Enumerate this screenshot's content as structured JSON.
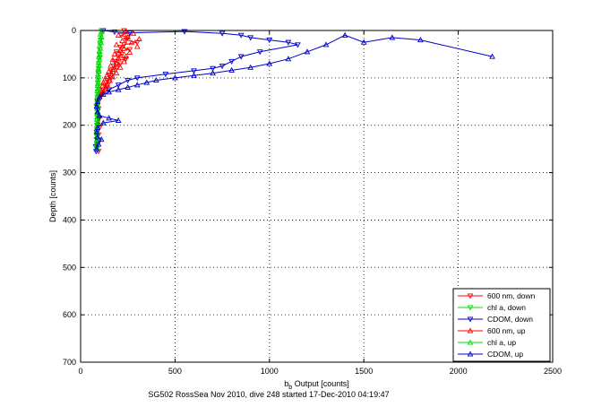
{
  "caption": "SG502 RossSea Nov 2010, dive 248 started 17-Dec-2010 04:19:47",
  "chart_data": {
    "type": "scatter",
    "xlabel": {
      "main": "b",
      "sub": "b",
      "rest": " Output [counts]"
    },
    "ylabel": "Depth [counts]",
    "xlim": [
      0,
      2500
    ],
    "ylim": [
      0,
      700
    ],
    "y_reversed": true,
    "xticks": [
      0,
      500,
      1000,
      1500,
      2000,
      2500
    ],
    "yticks": [
      0,
      100,
      200,
      300,
      400,
      500,
      600,
      700
    ],
    "grid": true,
    "grid_style": "dotted",
    "legend_position": "bottom-right",
    "series": [
      {
        "name": "600 nm, down",
        "color": "#ff0000",
        "marker": "triangle-down",
        "line": true,
        "points": [
          [
            230,
            0
          ],
          [
            260,
            5
          ],
          [
            215,
            10
          ],
          [
            250,
            15
          ],
          [
            240,
            20
          ],
          [
            300,
            25
          ],
          [
            230,
            30
          ],
          [
            210,
            35
          ],
          [
            260,
            40
          ],
          [
            190,
            45
          ],
          [
            220,
            50
          ],
          [
            200,
            55
          ],
          [
            240,
            60
          ],
          [
            180,
            65
          ],
          [
            210,
            70
          ],
          [
            175,
            75
          ],
          [
            190,
            80
          ],
          [
            160,
            85
          ],
          [
            170,
            90
          ],
          [
            150,
            95
          ],
          [
            160,
            100
          ],
          [
            140,
            105
          ],
          [
            150,
            110
          ],
          [
            130,
            115
          ],
          [
            140,
            120
          ],
          [
            120,
            125
          ],
          [
            115,
            130
          ],
          [
            105,
            135
          ],
          [
            100,
            140
          ],
          [
            95,
            150
          ],
          [
            95,
            165
          ],
          [
            100,
            185
          ],
          [
            100,
            205
          ],
          [
            95,
            220
          ],
          [
            90,
            240
          ],
          [
            95,
            255
          ]
        ]
      },
      {
        "name": "chl a, down",
        "color": "#00dd00",
        "marker": "triangle-down",
        "line": true,
        "points": [
          [
            110,
            0
          ],
          [
            108,
            10
          ],
          [
            106,
            20
          ],
          [
            104,
            30
          ],
          [
            102,
            40
          ],
          [
            100,
            50
          ],
          [
            98,
            60
          ],
          [
            96,
            70
          ],
          [
            95,
            80
          ],
          [
            94,
            90
          ],
          [
            93,
            100
          ],
          [
            92,
            110
          ],
          [
            91,
            120
          ],
          [
            90,
            130
          ],
          [
            90,
            140
          ],
          [
            89,
            150
          ],
          [
            89,
            160
          ],
          [
            88,
            170
          ],
          [
            88,
            180
          ],
          [
            88,
            190
          ],
          [
            87,
            200
          ],
          [
            87,
            210
          ],
          [
            86,
            220
          ],
          [
            86,
            230
          ],
          [
            86,
            240
          ],
          [
            86,
            250
          ]
        ]
      },
      {
        "name": "CDOM, down",
        "color": "#0000cc",
        "marker": "triangle-down",
        "line": true,
        "points": [
          [
            120,
            0
          ],
          [
            180,
            3
          ],
          [
            260,
            5
          ],
          [
            550,
            2
          ],
          [
            750,
            6
          ],
          [
            850,
            10
          ],
          [
            900,
            15
          ],
          [
            1000,
            20
          ],
          [
            1100,
            25
          ],
          [
            1150,
            30
          ],
          [
            950,
            45
          ],
          [
            850,
            55
          ],
          [
            800,
            65
          ],
          [
            750,
            75
          ],
          [
            700,
            80
          ],
          [
            600,
            85
          ],
          [
            450,
            92
          ],
          [
            300,
            100
          ],
          [
            250,
            105
          ],
          [
            200,
            115
          ],
          [
            150,
            125
          ],
          [
            110,
            135
          ],
          [
            90,
            150
          ],
          [
            85,
            160
          ],
          [
            90,
            170
          ],
          [
            95,
            185
          ],
          [
            90,
            200
          ],
          [
            85,
            215
          ],
          [
            85,
            230
          ],
          [
            80,
            245
          ],
          [
            82,
            255
          ]
        ]
      },
      {
        "name": "600 nm, up",
        "color": "#ff0000",
        "marker": "triangle-up",
        "line": false,
        "points": [
          [
            240,
            2
          ],
          [
            280,
            6
          ],
          [
            200,
            10
          ],
          [
            250,
            14
          ],
          [
            310,
            18
          ],
          [
            220,
            22
          ],
          [
            270,
            26
          ],
          [
            190,
            30
          ],
          [
            300,
            34
          ],
          [
            230,
            38
          ],
          [
            210,
            42
          ],
          [
            260,
            46
          ],
          [
            180,
            50
          ],
          [
            240,
            54
          ],
          [
            200,
            58
          ],
          [
            170,
            62
          ],
          [
            230,
            66
          ],
          [
            190,
            70
          ],
          [
            160,
            74
          ],
          [
            210,
            78
          ],
          [
            170,
            82
          ],
          [
            150,
            86
          ],
          [
            190,
            90
          ],
          [
            140,
            94
          ],
          [
            170,
            98
          ],
          [
            130,
            102
          ],
          [
            155,
            106
          ],
          [
            120,
            110
          ],
          [
            140,
            114
          ],
          [
            115,
            118
          ],
          [
            130,
            122
          ],
          [
            105,
            126
          ],
          [
            120,
            130
          ],
          [
            110,
            134
          ],
          [
            100,
            138
          ]
        ]
      },
      {
        "name": "chl a, up",
        "color": "#00dd00",
        "marker": "triangle-up",
        "line": false,
        "points": [
          [
            112,
            2
          ],
          [
            105,
            8
          ],
          [
            110,
            14
          ],
          [
            103,
            20
          ],
          [
            108,
            26
          ],
          [
            100,
            32
          ],
          [
            105,
            38
          ],
          [
            99,
            44
          ],
          [
            102,
            50
          ],
          [
            97,
            56
          ],
          [
            100,
            62
          ],
          [
            95,
            68
          ],
          [
            98,
            74
          ],
          [
            94,
            80
          ],
          [
            96,
            86
          ],
          [
            92,
            92
          ],
          [
            95,
            98
          ],
          [
            91,
            104
          ],
          [
            93,
            110
          ],
          [
            90,
            116
          ],
          [
            92,
            122
          ],
          [
            89,
            128
          ],
          [
            91,
            134
          ],
          [
            88,
            140
          ],
          [
            90,
            146
          ],
          [
            88,
            152
          ],
          [
            89,
            158
          ],
          [
            87,
            164
          ],
          [
            89,
            170
          ],
          [
            87,
            176
          ],
          [
            88,
            182
          ],
          [
            86,
            188
          ],
          [
            88,
            194
          ],
          [
            86,
            200
          ],
          [
            87,
            206
          ],
          [
            85,
            212
          ],
          [
            87,
            218
          ],
          [
            85,
            224
          ],
          [
            86,
            230
          ],
          [
            85,
            236
          ],
          [
            86,
            242
          ],
          [
            85,
            248
          ]
        ]
      },
      {
        "name": "CDOM, up",
        "color": "#0000cc",
        "marker": "triangle-up",
        "line": true,
        "points": [
          [
            2180,
            55
          ],
          [
            1800,
            20
          ],
          [
            1650,
            15
          ],
          [
            1500,
            25
          ],
          [
            1400,
            10
          ],
          [
            1300,
            30
          ],
          [
            1200,
            45
          ],
          [
            1100,
            60
          ],
          [
            1000,
            70
          ],
          [
            900,
            78
          ],
          [
            800,
            84
          ],
          [
            700,
            90
          ],
          [
            600,
            95
          ],
          [
            500,
            100
          ],
          [
            400,
            105
          ],
          [
            350,
            110
          ],
          [
            300,
            115
          ],
          [
            250,
            120
          ],
          [
            200,
            125
          ],
          [
            150,
            130
          ],
          [
            120,
            135
          ],
          [
            100,
            140
          ],
          [
            90,
            150
          ],
          [
            85,
            160
          ],
          [
            90,
            172
          ],
          [
            100,
            180
          ],
          [
            150,
            185
          ],
          [
            200,
            190
          ],
          [
            120,
            195
          ],
          [
            90,
            205
          ],
          [
            85,
            215
          ],
          [
            90,
            225
          ],
          [
            110,
            230
          ],
          [
            95,
            240
          ],
          [
            85,
            250
          ]
        ]
      }
    ]
  }
}
